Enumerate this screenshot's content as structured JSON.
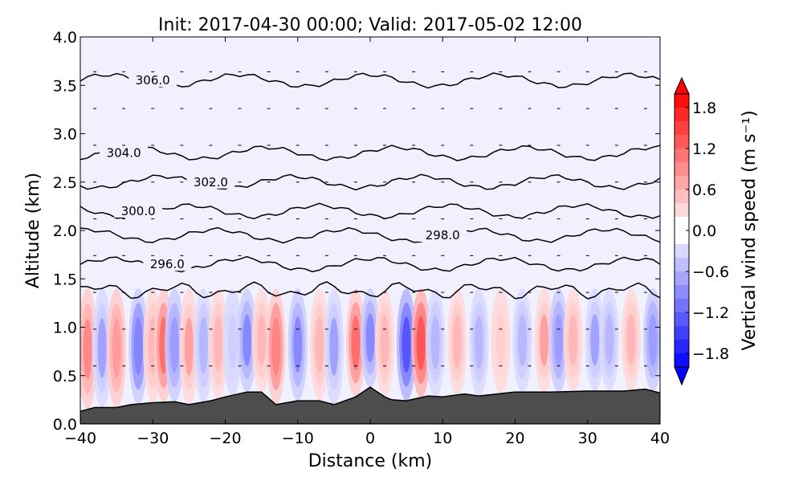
{
  "chart_data": {
    "type": "heatmap",
    "title": "Init: 2017-04-30 00:00; Valid: 2017-05-02 12:00",
    "xlabel": "Distance (km)",
    "ylabel": "Altitude (km)",
    "xlim": [
      -40,
      40
    ],
    "ylim": [
      0.0,
      4.0
    ],
    "xticks": [
      -40,
      -30,
      -20,
      -10,
      0,
      10,
      20,
      30,
      40
    ],
    "xtick_labels": [
      "−40",
      "−30",
      "−20",
      "−10",
      "0",
      "10",
      "20",
      "30",
      "40"
    ],
    "yticks": [
      0.0,
      0.5,
      1.0,
      1.5,
      2.0,
      2.5,
      3.0,
      3.5,
      4.0
    ],
    "ytick_labels": [
      "0.0",
      "0.5",
      "1.0",
      "1.5",
      "2.0",
      "2.5",
      "3.0",
      "3.5",
      "4.0"
    ],
    "colorbar": {
      "label": "Vertical wind speed (m s⁻¹)",
      "range": [
        -2.0,
        2.0
      ],
      "ticks": [
        1.8,
        1.2,
        0.6,
        0.0,
        -0.6,
        -1.2,
        -1.8
      ],
      "tick_labels": [
        "1.8",
        "1.2",
        "0.6",
        "0.0",
        "−0.6",
        "−1.2",
        "−1.8"
      ],
      "positive_color": "#ff0000",
      "negative_color": "#0000ff"
    },
    "isentropes_K": [
      {
        "label": "296.0",
        "base_alt": 1.65,
        "label_x": -28
      },
      {
        "label": "298.0",
        "base_alt": 1.95,
        "label_x": 10
      },
      {
        "label": "300.0",
        "base_alt": 2.2,
        "label_x": -32
      },
      {
        "label": "302.0",
        "base_alt": 2.5,
        "label_x": -22
      },
      {
        "label": "304.0",
        "base_alt": 2.8,
        "label_x": -34
      },
      {
        "label": "306.0",
        "base_alt": 3.55,
        "label_x": -30
      }
    ],
    "terrain_km": {
      "x": [
        -40,
        -38,
        -35,
        -33,
        -30,
        -27,
        -25,
        -22,
        -20,
        -17,
        -15,
        -13,
        -10,
        -7,
        -5,
        -2,
        0,
        2,
        3,
        5,
        8,
        10,
        13,
        15,
        20,
        25,
        30,
        35,
        38,
        40
      ],
      "y": [
        0.13,
        0.17,
        0.17,
        0.2,
        0.22,
        0.23,
        0.2,
        0.24,
        0.28,
        0.33,
        0.33,
        0.2,
        0.24,
        0.24,
        0.2,
        0.28,
        0.38,
        0.28,
        0.25,
        0.24,
        0.29,
        0.28,
        0.31,
        0.29,
        0.33,
        0.33,
        0.34,
        0.34,
        0.36,
        0.32
      ]
    },
    "vertical_motion_cells": [
      {
        "x": -39,
        "w": 0.9
      },
      {
        "x": -37,
        "w": -0.7
      },
      {
        "x": -35,
        "w": 0.8
      },
      {
        "x": -32,
        "w": -1.0
      },
      {
        "x": -30,
        "w": 0.6
      },
      {
        "x": -28.5,
        "w": 1.2
      },
      {
        "x": -27,
        "w": -0.8
      },
      {
        "x": -25,
        "w": 0.7
      },
      {
        "x": -23,
        "w": -0.5
      },
      {
        "x": -21,
        "w": 0.6
      },
      {
        "x": -19,
        "w": -0.4
      },
      {
        "x": -17,
        "w": -0.9
      },
      {
        "x": -15,
        "w": 0.5
      },
      {
        "x": -13,
        "w": 1.0
      },
      {
        "x": -10,
        "w": -0.9
      },
      {
        "x": -7,
        "w": 0.6
      },
      {
        "x": -5,
        "w": -0.7
      },
      {
        "x": -2,
        "w": 1.1
      },
      {
        "x": 0,
        "w": -0.9
      },
      {
        "x": 2,
        "w": 0.5
      },
      {
        "x": 5,
        "w": -1.4
      },
      {
        "x": 7,
        "w": 1.3
      },
      {
        "x": 9,
        "w": -0.6
      },
      {
        "x": 12,
        "w": 0.5
      },
      {
        "x": 15,
        "w": -0.6
      },
      {
        "x": 18,
        "w": 0.4
      },
      {
        "x": 21,
        "w": -0.5
      },
      {
        "x": 24,
        "w": 0.7
      },
      {
        "x": 26,
        "w": -0.8
      },
      {
        "x": 28,
        "w": 0.5
      },
      {
        "x": 31,
        "w": -0.7
      },
      {
        "x": 33,
        "w": -0.6
      },
      {
        "x": 36,
        "w": 0.6
      },
      {
        "x": 39,
        "w": -0.8
      }
    ]
  }
}
